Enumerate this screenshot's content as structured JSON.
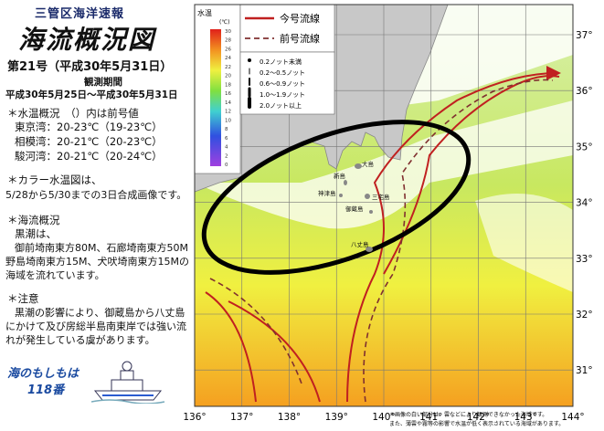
{
  "header": {
    "subtitle": "三管区海洋速報",
    "title": "海流概況図",
    "issue": "第21号（平成30年5月31日）",
    "period_label": "観測期間",
    "period": "平成30年5月25日～平成30年5月31日"
  },
  "notes": {
    "temp_heading": "＊水温概況　（）内は前号値",
    "temps": [
      "東京湾：20-23℃（19-23℃）",
      "相模湾：20-21℃（20-23℃）",
      "駿河湾：20-21℃（20-24℃）"
    ],
    "image_heading": "＊カラー水温図は、",
    "image_text": "5/28から5/30までの3日合成画像です。",
    "current_heading": "＊海流概況",
    "current_lines": [
      "黒潮は、",
      "御前埼南東方80M、石廊埼南東方50M",
      "野島埼南東方15M、犬吠埼南東方15Mの",
      "海域を流れています。"
    ],
    "caution_heading": "＊注意",
    "caution_lines": [
      "黒潮の影響により、御蔵島から八丈島",
      "にかけて及び房総半島南東岸では強い流",
      "れが発生している虞があります。"
    ],
    "emergency": [
      "海のもしもは",
      "118番"
    ]
  },
  "map": {
    "colorbar_title": "水温",
    "colorbar_unit": "(℃)",
    "colorbar_ticks": [
      30,
      28,
      26,
      24,
      22,
      20,
      18,
      16,
      14,
      12,
      10,
      8,
      6,
      4,
      2,
      0
    ],
    "line_legend": [
      "今号流線",
      "前号流線"
    ],
    "arrow_legend": [
      "0.2ノット未満",
      "0.2～0.5ノット",
      "0.6～0.9ノット",
      "1.0～1.9ノット",
      "2.0ノット以上"
    ],
    "lat_labels": [
      "37°",
      "36°",
      "35°",
      "34°",
      "33°",
      "32°",
      "31°"
    ],
    "lon_labels": [
      "136°",
      "137°",
      "138°",
      "139°",
      "140°",
      "141°",
      "142°",
      "143°",
      "144°"
    ],
    "places": [
      "大島",
      "新島",
      "神津島",
      "三宅島",
      "御蔵島",
      "八丈島"
    ],
    "footnotes": [
      "＊画像の白い部分は、雲などにより観測できなかった海域です。",
      "また、薄雲や霧等の影響で水温が低く表示されている海域があります。"
    ]
  }
}
